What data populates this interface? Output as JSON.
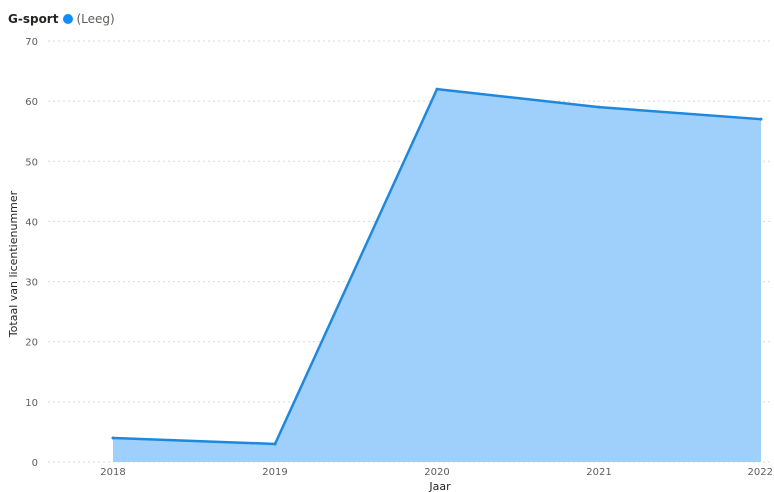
{
  "chart_data": {
    "type": "area",
    "legend": {
      "title": "G-sport",
      "entries": [
        {
          "label": "(Leeg)",
          "color": "#118DFF"
        }
      ]
    },
    "x": [
      "2018",
      "2019",
      "2020",
      "2021",
      "2022"
    ],
    "series": [
      {
        "name": "(Leeg)",
        "values": [
          4,
          3,
          62,
          59,
          57
        ]
      }
    ],
    "xlabel": "Jaar",
    "ylabel": "Totaal van licentienummer",
    "ylim": [
      0,
      70
    ],
    "yticks": [
      0,
      10,
      20,
      30,
      40,
      50,
      60,
      70
    ],
    "grid": true,
    "colors": {
      "line": "#1F88DC",
      "fill": "#9FCFFB",
      "grid": "#D9D9D9"
    }
  }
}
